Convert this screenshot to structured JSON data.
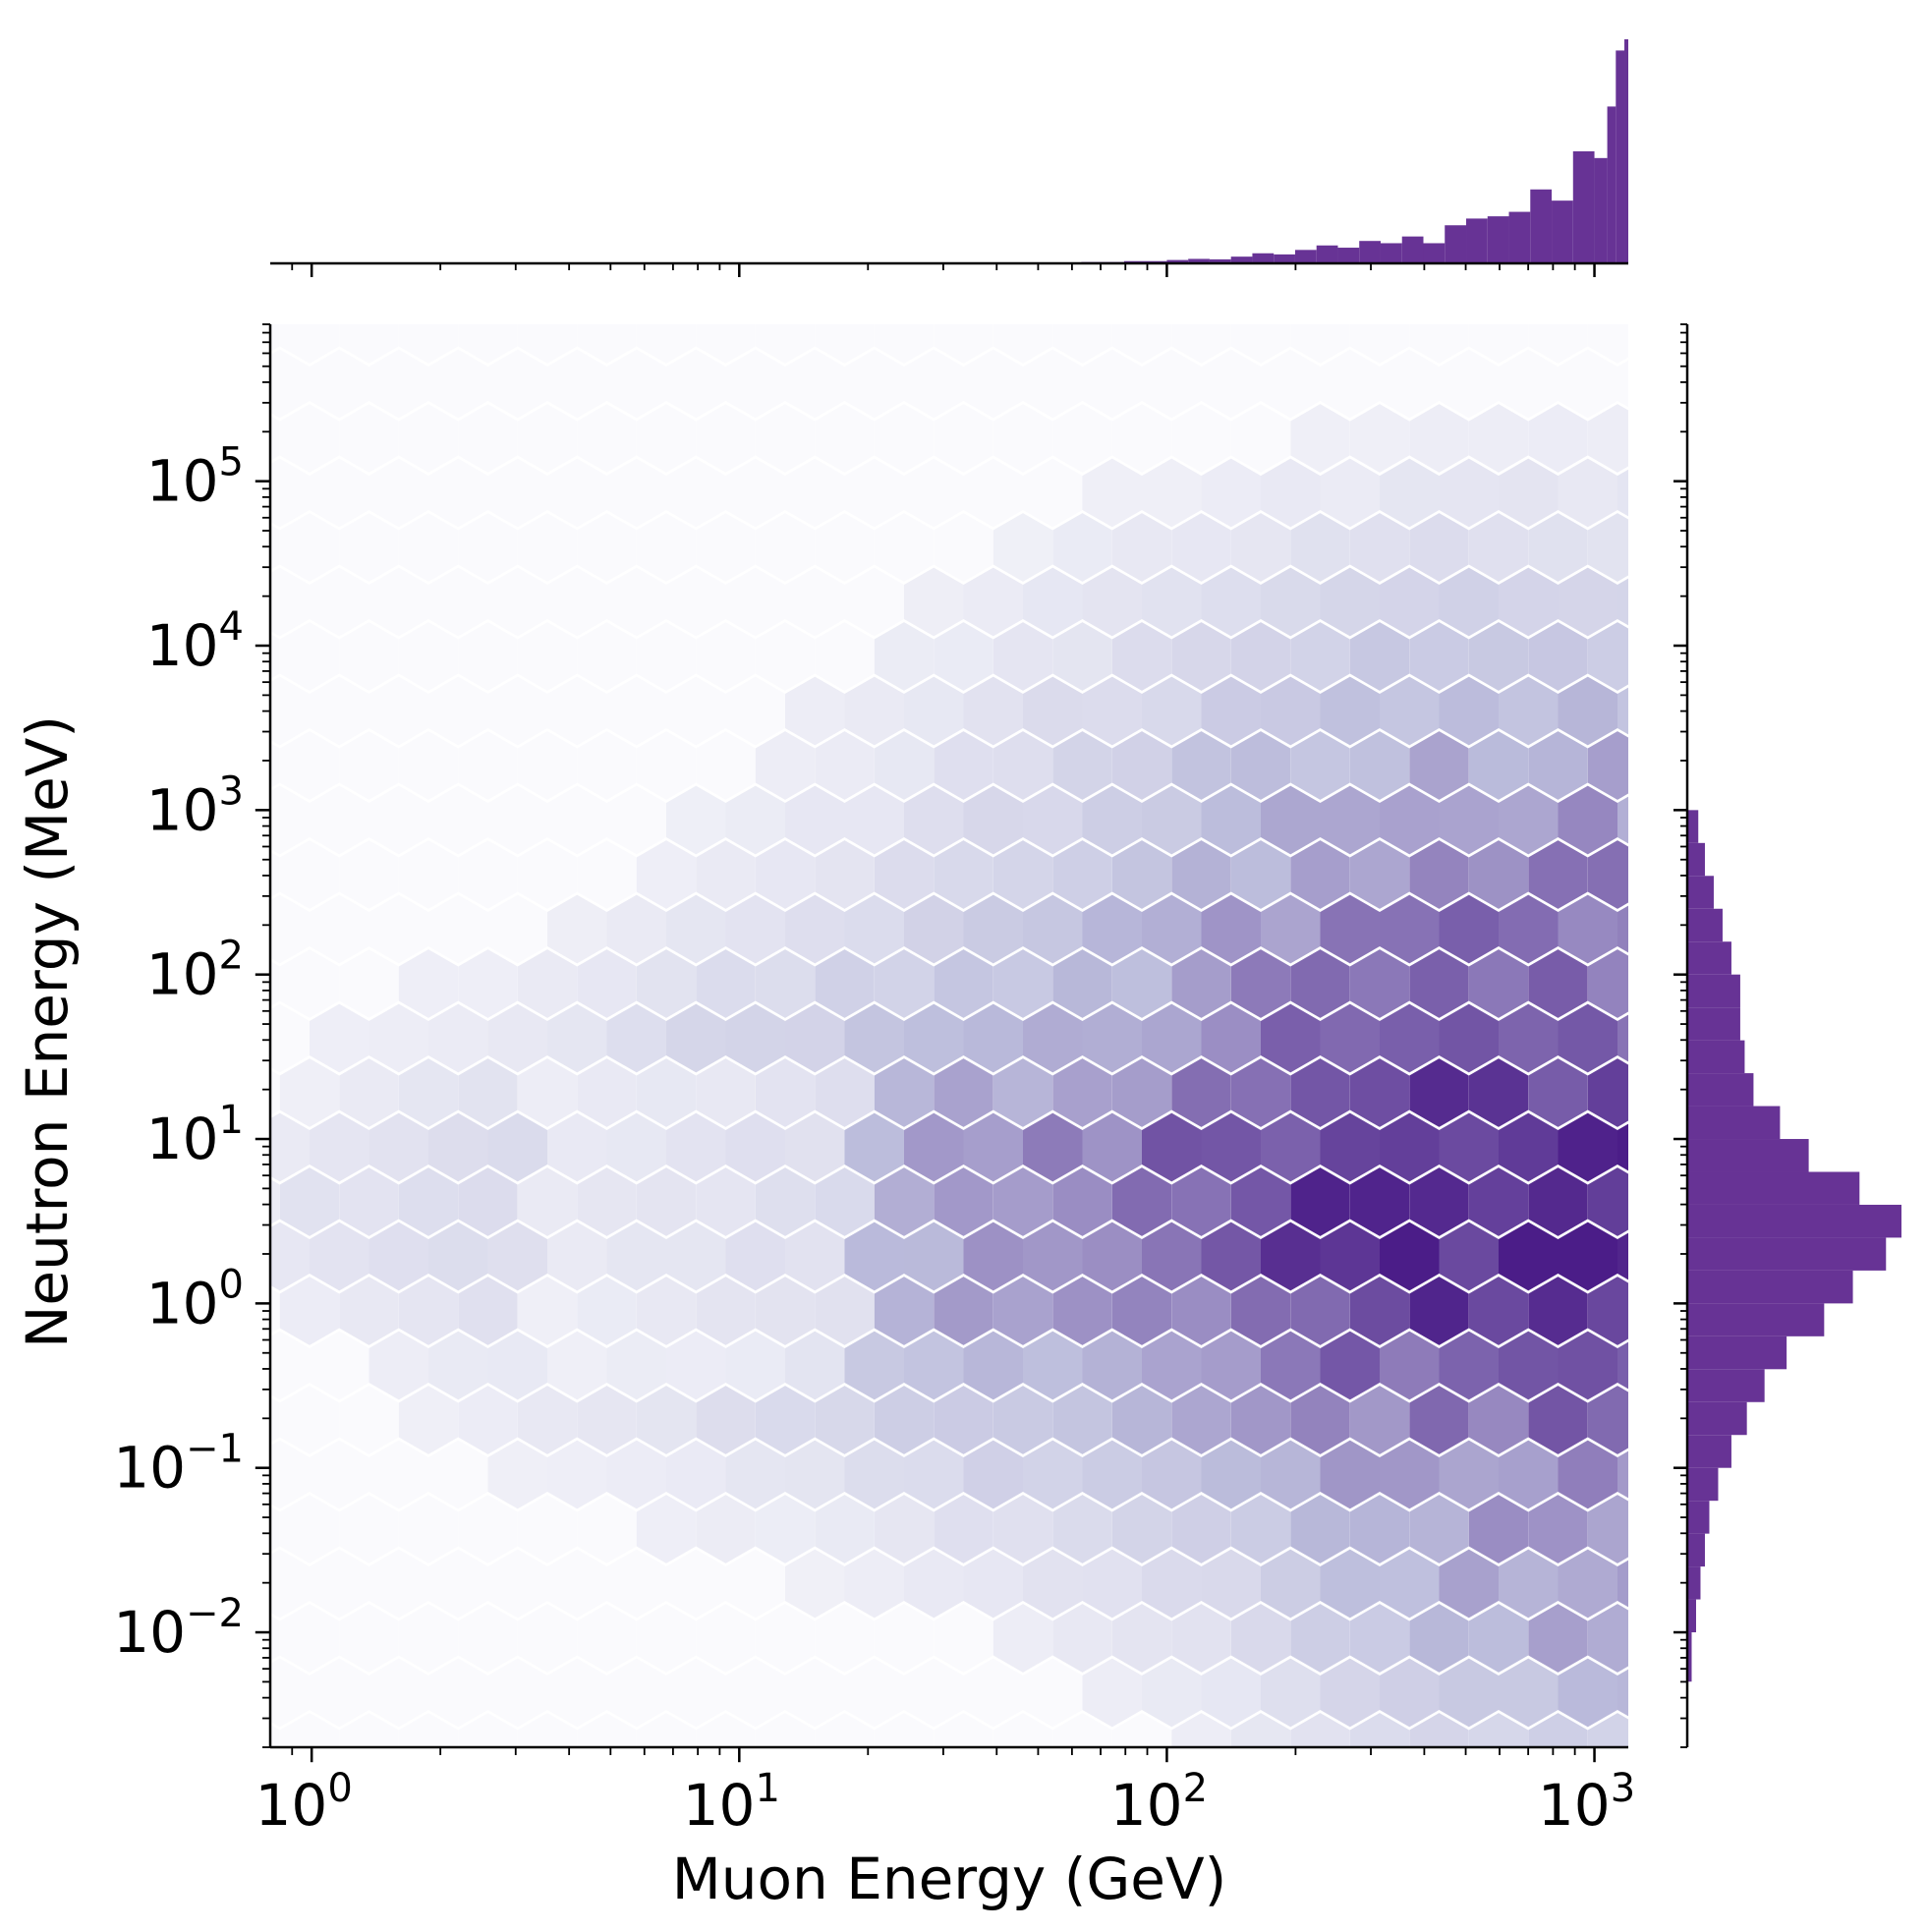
{
  "chart_data": {
    "type": "hexbin",
    "kind": "joint plot with marginal histograms",
    "xlabel": "Muon Energy (GeV)",
    "ylabel": "Neutron Energy (MeV)",
    "x_scale": "log",
    "y_scale": "log",
    "xlim": [
      0.8,
      1200
    ],
    "ylim": [
      0.002,
      900000
    ],
    "x_ticks": [
      {
        "value": 1,
        "base": "10",
        "exp": "0"
      },
      {
        "value": 10,
        "base": "10",
        "exp": "1"
      },
      {
        "value": 100,
        "base": "10",
        "exp": "2"
      },
      {
        "value": 1000,
        "base": "10",
        "exp": "3"
      }
    ],
    "y_ticks": [
      {
        "value": 0.01,
        "base": "10",
        "exp": "−2"
      },
      {
        "value": 0.1,
        "base": "10",
        "exp": "−1"
      },
      {
        "value": 1,
        "base": "10",
        "exp": "0"
      },
      {
        "value": 10,
        "base": "10",
        "exp": "1"
      },
      {
        "value": 100,
        "base": "10",
        "exp": "2"
      },
      {
        "value": 1000,
        "base": "10",
        "exp": "3"
      },
      {
        "value": 10000,
        "base": "10",
        "exp": "4"
      },
      {
        "value": 100000,
        "base": "10",
        "exp": "5"
      }
    ],
    "colormap": "Purples",
    "colors": {
      "empty_bin": "#fafafd",
      "dark": "#4b1d88",
      "histogram": "#673395"
    },
    "hex_gridsize": 22,
    "grid": false,
    "density_model": "approximate 2D log-space density reconstructed from hexbin shading",
    "density_components": [
      {
        "log10_x": 3.1,
        "log10_y": 0.35,
        "sigma_x": 0.9,
        "sigma_y": 0.95,
        "weight": 1.0
      },
      {
        "log10_x": 2.9,
        "log10_y": 2.4,
        "sigma_x": 0.7,
        "sigma_y": 1.1,
        "weight": 0.45
      },
      {
        "log10_x": 3.05,
        "log10_y": -1.8,
        "sigma_x": 0.45,
        "sigma_y": 0.65,
        "weight": 0.32
      },
      {
        "log10_x": 1.6,
        "log10_y": 0.7,
        "sigma_x": 0.7,
        "sigma_y": 0.8,
        "weight": 0.18
      },
      {
        "log10_x": 0.2,
        "log10_y": 0.5,
        "sigma_x": 0.25,
        "sigma_y": 0.35,
        "weight": 0.035
      }
    ],
    "top_histogram": {
      "bin_log10_left_edges": [
        1.6,
        1.7,
        1.8,
        1.9,
        2.0,
        2.05,
        2.1,
        2.15,
        2.2,
        2.25,
        2.3,
        2.35,
        2.4,
        2.45,
        2.5,
        2.55,
        2.6,
        2.65,
        2.7,
        2.75,
        2.8,
        2.85,
        2.9,
        2.95,
        3.0,
        3.03,
        3.05,
        3.07
      ],
      "counts": [
        0.002,
        0.003,
        0.006,
        0.01,
        0.015,
        0.02,
        0.018,
        0.03,
        0.045,
        0.04,
        0.06,
        0.08,
        0.07,
        0.1,
        0.09,
        0.12,
        0.09,
        0.17,
        0.2,
        0.21,
        0.23,
        0.33,
        0.28,
        0.5,
        0.47,
        0.7,
        0.95,
        1.0
      ]
    },
    "right_histogram": {
      "bin_log10_bottom_edges": [
        -2.3,
        -2.0,
        -1.8,
        -1.6,
        -1.4,
        -1.2,
        -1.0,
        -0.8,
        -0.6,
        -0.4,
        -0.2,
        0.0,
        0.2,
        0.4,
        0.6,
        0.8,
        1.0,
        1.2,
        1.4,
        1.6,
        1.8,
        2.0,
        2.2,
        2.4,
        2.6,
        2.8
      ],
      "counts": [
        0.02,
        0.04,
        0.06,
        0.08,
        0.1,
        0.14,
        0.2,
        0.27,
        0.35,
        0.45,
        0.62,
        0.75,
        0.9,
        0.97,
        0.78,
        0.55,
        0.42,
        0.3,
        0.26,
        0.24,
        0.24,
        0.2,
        0.16,
        0.12,
        0.08,
        0.05
      ]
    }
  }
}
